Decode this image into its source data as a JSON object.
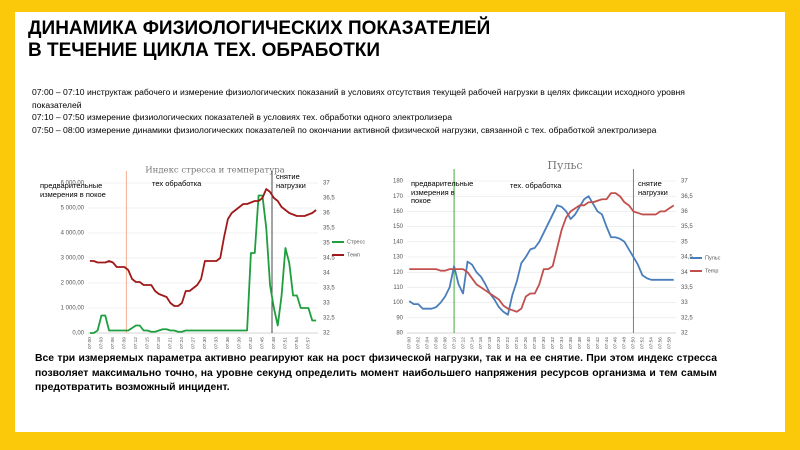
{
  "slide": {
    "title": [
      "ДИНАМИКА ФИЗИОЛОГИЧЕСКИХ ПОКАЗАТЕЛЕЙ",
      "В ТЕЧЕНИЕ ЦИКЛА ТЕХ. ОБРАБОТКИ"
    ],
    "notes": [
      "07:00 – 07:10 инструктаж рабочего и измерение физиологических показаний в условиях отсутствия текущей рабочей нагрузки в целях фиксации исходного уровня показателей",
      "07:10 – 07:50 измерение физиологических показателей в условиях тех. обработки одного электролизера",
      "07:50 – 08:00 измерение динамики физиологических показателей по окончании активной физической нагрузки, связанной с тех. обработкой электролизера"
    ],
    "summary": "Все три измеряемых параметра активно реагируют как на рост физической нагрузки, так и на ее снятие. При этом индекс стресса позволяет максимально точно, на уровне секунд определить момент наибольшего напряжения ресурсов организма и тем самым предотвратить возможный инцидент."
  },
  "chart_data": [
    {
      "type": "line",
      "title": "Индекс стресса и температура",
      "annotations": [
        "предварительные измерения в покое",
        "тех обработка",
        "снятие нагрузки"
      ],
      "categories": [
        "07:00",
        null,
        null,
        "07:03",
        null,
        null,
        "07:06",
        null,
        null,
        "07:09",
        null,
        null,
        "07:12",
        null,
        null,
        "07:15",
        null,
        null,
        "07:18",
        null,
        null,
        "07:21",
        null,
        null,
        "07:24",
        null,
        null,
        "07:27",
        null,
        null,
        "07:30",
        null,
        null,
        "07:33",
        null,
        null,
        "07:36",
        null,
        null,
        "07:39",
        null,
        null,
        "07:42",
        null,
        null,
        "07:45",
        null,
        null,
        "07:48",
        null,
        null,
        "07:51",
        null,
        null,
        "07:54",
        null,
        null,
        "07:57",
        null,
        null
      ],
      "ylim": [
        0,
        6000
      ],
      "yticks": [
        {
          "value": 0,
          "label": "0,00"
        },
        {
          "value": 1000,
          "label": "1 000,00"
        },
        {
          "value": 2000,
          "label": "2 000,00"
        },
        {
          "value": 3000,
          "label": "3 000,00"
        },
        {
          "value": 4000,
          "label": "4 000,00"
        },
        {
          "value": 5000,
          "label": "5 000,00"
        },
        {
          "value": 6000,
          "label": "6 000,00"
        }
      ],
      "y2lim": [
        32,
        37
      ],
      "y2ticks": [
        32,
        {
          "value": 32.5,
          "label": "32,5"
        },
        33,
        {
          "value": 33.5,
          "label": "33,5"
        },
        34,
        {
          "value": 34.5,
          "label": "34,5"
        },
        35,
        {
          "value": 35.5,
          "label": "35,5"
        },
        36,
        {
          "value": 36.5,
          "label": "36,5"
        },
        37
      ],
      "series": [
        {
          "name": "Стресс",
          "color": "#1e9e3e",
          "values": [
            0,
            0,
            100,
            700,
            700,
            100,
            100,
            100,
            100,
            100,
            100,
            200,
            300,
            300,
            100,
            100,
            50,
            50,
            100,
            150,
            150,
            100,
            100,
            50,
            50,
            100,
            100,
            100,
            100,
            100,
            100,
            100,
            100,
            100,
            100,
            100,
            100,
            100,
            100,
            100,
            100,
            100,
            3200,
            3200,
            5500,
            5500,
            4200,
            1900,
            1000,
            300,
            1500,
            3400,
            2800,
            1500,
            1500,
            1000,
            1000,
            1000,
            500,
            500
          ]
        },
        {
          "name": "Темп",
          "color": "#a01818",
          "axis": "y2",
          "values": [
            34.4,
            34.4,
            34.35,
            34.35,
            34.35,
            34.4,
            34.35,
            34.2,
            34.2,
            34.2,
            34.1,
            33.8,
            33.7,
            33.7,
            33.6,
            33.6,
            33.6,
            33.4,
            33.3,
            33.25,
            33.2,
            33,
            32.9,
            32.9,
            33,
            33.4,
            33.4,
            33.5,
            33.6,
            33.8,
            34.4,
            34.4,
            34.4,
            34.4,
            34.5,
            35.2,
            35.8,
            36,
            36.1,
            36.2,
            36.3,
            36.3,
            36.35,
            36.4,
            36.4,
            36.5,
            36.8,
            36.7,
            36.5,
            36.4,
            36.2,
            36.1,
            36,
            35.95,
            35.9,
            35.9,
            35.9,
            35.95,
            36,
            36.1
          ]
        }
      ]
    },
    {
      "type": "line",
      "title": "Пульс",
      "annotations": [
        "предварительные измерения в покое",
        "тех. обработка",
        "снятие нагрузки"
      ],
      "categories": [
        "07:00",
        null,
        "07:02",
        null,
        "07:04",
        null,
        "07:06",
        null,
        "07:08",
        null,
        "07:10",
        null,
        "07:12",
        null,
        "07:14",
        null,
        "07:16",
        null,
        "07:18",
        null,
        "07:20",
        null,
        "07:22",
        null,
        "07:24",
        null,
        "07:26",
        null,
        "07:28",
        null,
        "07:30",
        null,
        "07:32",
        null,
        "07:34",
        null,
        "07:36",
        null,
        "07:38",
        null,
        "07:40",
        null,
        "07:42",
        null,
        "07:44",
        null,
        "07:46",
        null,
        "07:48",
        null,
        "07:50",
        null,
        "07:52",
        null,
        "07:54",
        null,
        "07:56",
        null,
        "07:58",
        null
      ],
      "ylim": [
        80,
        180
      ],
      "yticks": [
        80,
        90,
        100,
        110,
        120,
        130,
        140,
        150,
        160,
        170,
        180
      ],
      "y2lim": [
        32,
        37
      ],
      "y2ticks": [
        32,
        {
          "value": 32.5,
          "label": "32,5"
        },
        33,
        {
          "value": 33.5,
          "label": "33,5"
        },
        34,
        {
          "value": 34.5,
          "label": "34,5"
        },
        35,
        {
          "value": 35.5,
          "label": "35,5"
        },
        36,
        {
          "value": 36.5,
          "label": "36,5"
        },
        37
      ],
      "series": [
        {
          "name": "Пульс",
          "color": "#4a7ebb",
          "values": [
            101,
            99,
            99,
            96,
            96,
            96,
            97,
            100,
            104,
            110,
            124,
            112,
            106,
            127,
            125,
            120,
            117,
            112,
            106,
            102,
            97,
            94,
            92,
            105,
            114,
            126,
            130,
            135,
            136,
            140,
            146,
            152,
            158,
            164,
            163,
            160,
            155,
            158,
            163,
            168,
            170,
            165,
            160,
            158,
            150,
            143,
            143,
            142,
            140,
            135,
            130,
            125,
            118,
            116,
            115,
            115,
            115,
            115,
            115,
            115
          ]
        },
        {
          "name": "Temp",
          "color": "#c0504d",
          "axis": "y2",
          "values": [
            34.1,
            34.1,
            34.1,
            34.1,
            34.1,
            34.1,
            34.1,
            34.05,
            34.05,
            34.1,
            34.1,
            34.1,
            34.1,
            34,
            33.8,
            33.6,
            33.5,
            33.4,
            33.3,
            33.2,
            33.1,
            32.9,
            32.8,
            32.75,
            32.7,
            32.8,
            33.2,
            33.3,
            33.3,
            33.6,
            34.1,
            34.1,
            34.2,
            34.8,
            35.4,
            35.8,
            36,
            36.1,
            36.2,
            36.2,
            36.3,
            36.3,
            36.35,
            36.4,
            36.4,
            36.6,
            36.6,
            36.5,
            36.3,
            36.2,
            36,
            35.95,
            35.9,
            35.9,
            35.9,
            35.9,
            36,
            36,
            36.1,
            36.2
          ]
        }
      ]
    }
  ]
}
